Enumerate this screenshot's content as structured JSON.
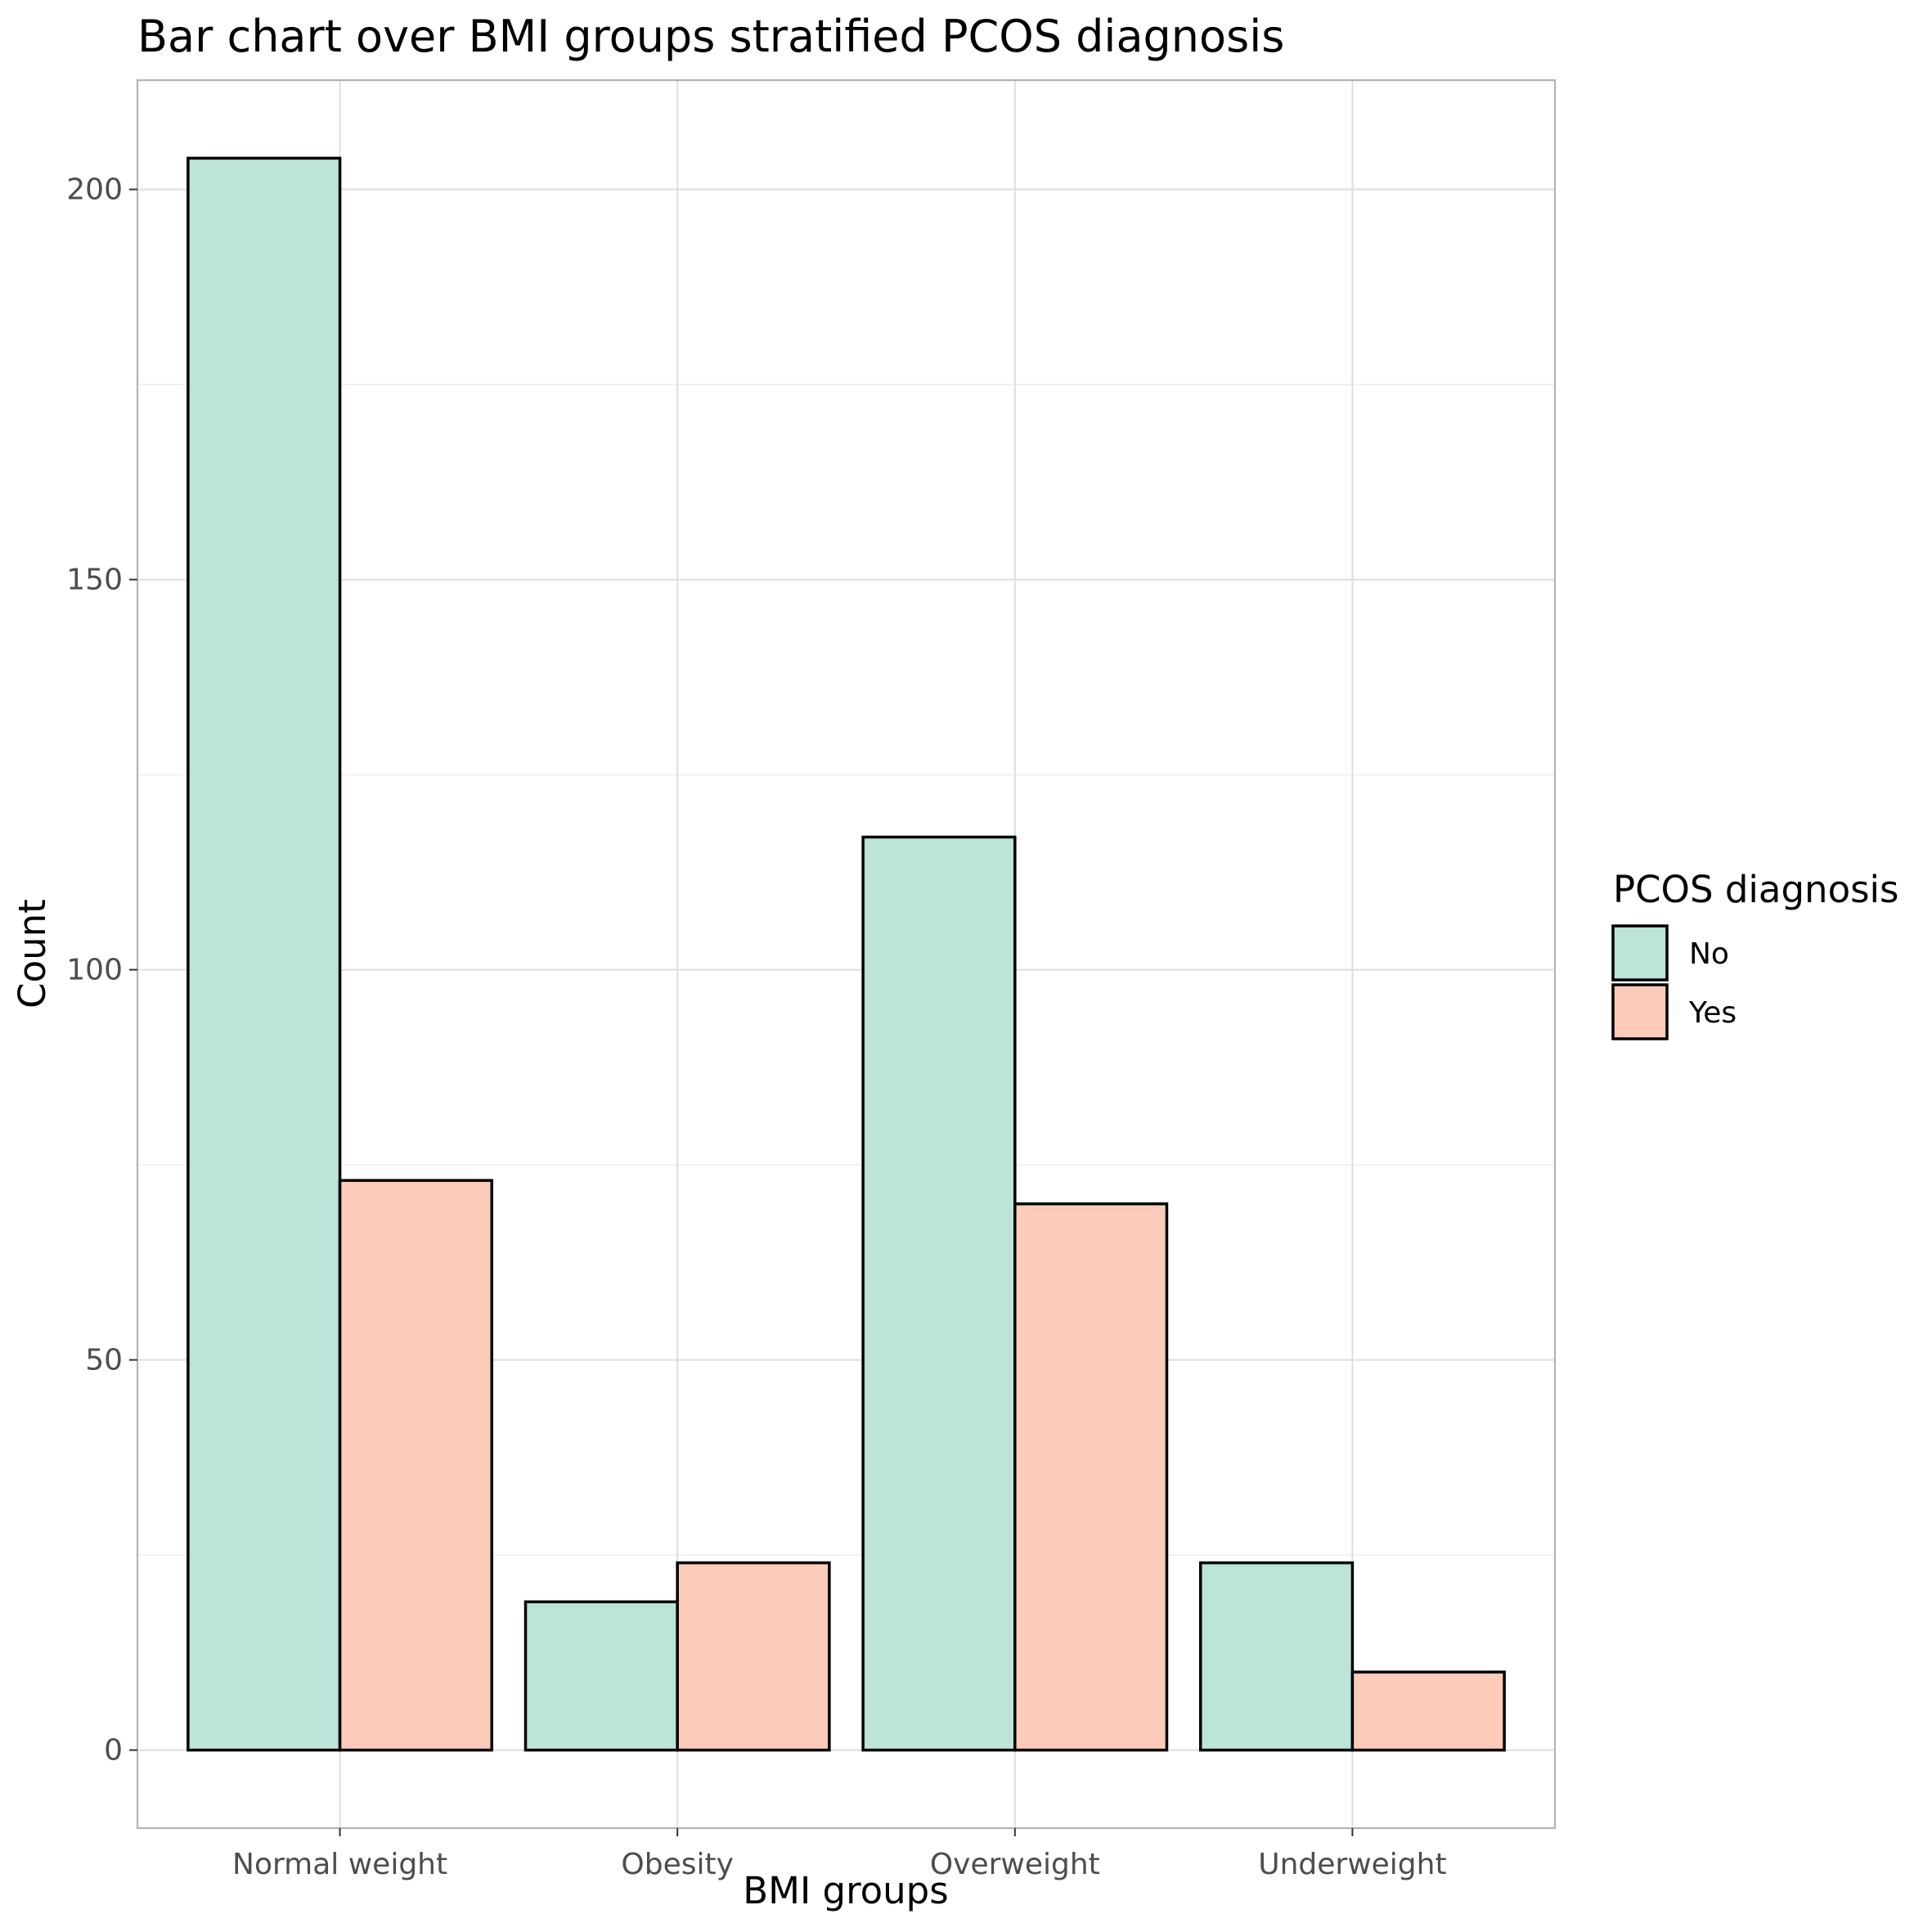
{
  "chart_data": {
    "type": "bar",
    "title": "Bar chart over BMI groups stratified PCOS diagnosis",
    "xlabel": "BMI groups",
    "ylabel": "Count",
    "categories": [
      "Normal weight",
      "Obesity",
      "Overweight",
      "Underweight"
    ],
    "series": [
      {
        "name": "No",
        "values": [
          204,
          19,
          117,
          24
        ],
        "color": "#bce4d8"
      },
      {
        "name": "Yes",
        "values": [
          73,
          24,
          70,
          10
        ],
        "color": "#fdcbba"
      }
    ],
    "ylim": [
      -10,
      214
    ],
    "yticks": [
      0,
      50,
      100,
      150,
      200
    ],
    "yticks_labels": [
      "0",
      "50",
      "100",
      "150",
      "200"
    ],
    "grid": true,
    "legend": {
      "title": "PCOS diagnosis",
      "position": "right"
    },
    "bar_outline_color": "#000000"
  }
}
